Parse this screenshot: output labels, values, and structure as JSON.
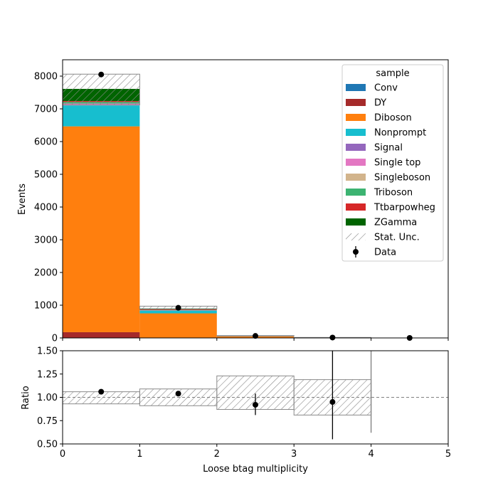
{
  "chart_data": [
    {
      "type": "bar",
      "stacked": true,
      "xlabel": "",
      "ylabel": "Events",
      "xlim": [
        0,
        5
      ],
      "ylim": [
        0,
        8500
      ],
      "xticks": [
        0,
        1,
        2,
        3,
        4,
        5
      ],
      "xtick_labels_shown": false,
      "yticks": [
        0,
        1000,
        2000,
        3000,
        4000,
        5000,
        6000,
        7000,
        8000
      ],
      "bin_edges": [
        0,
        1,
        2,
        3,
        4,
        5
      ],
      "legend_title": "sample",
      "legend_position": "top-right",
      "series": [
        {
          "name": "Conv",
          "color": "#1f77b4",
          "values": [
            0,
            0,
            0,
            0,
            0
          ]
        },
        {
          "name": "DY",
          "color": "#a52a2a",
          "values": [
            175,
            10,
            2,
            0,
            0
          ]
        },
        {
          "name": "Diboson",
          "color": "#ff7f0e",
          "values": [
            6290,
            740,
            42,
            8,
            0
          ]
        },
        {
          "name": "Nonprompt",
          "color": "#17becf",
          "values": [
            640,
            85,
            6,
            1,
            0
          ]
        },
        {
          "name": "Signal",
          "color": "#9467bd",
          "values": [
            0,
            0,
            0,
            0,
            0
          ]
        },
        {
          "name": "Single top",
          "color": "#e377c2",
          "values": [
            55,
            8,
            1,
            0,
            0
          ]
        },
        {
          "name": "Singleboson",
          "color": "#d2b48c",
          "values": [
            0,
            0,
            0,
            0,
            0
          ]
        },
        {
          "name": "Triboson",
          "color": "#3cb371",
          "values": [
            50,
            8,
            1,
            0,
            0
          ]
        },
        {
          "name": "Ttbarpowheg",
          "color": "#d62728",
          "values": [
            30,
            20,
            10,
            3,
            0
          ]
        },
        {
          "name": "ZGamma",
          "color": "#006400",
          "values": [
            370,
            30,
            4,
            1,
            0
          ]
        }
      ],
      "stat_unc": {
        "name": "Stat. Unc.",
        "up": [
          8060,
          970,
          72,
          15,
          0
        ],
        "down": [
          7120,
          890,
          60,
          11,
          0
        ]
      },
      "data_series": {
        "name": "Data",
        "x": [
          0.5,
          1.5,
          2.5,
          3.5,
          4.5
        ],
        "y": [
          8050,
          920,
          62,
          12,
          0
        ]
      }
    },
    {
      "type": "line",
      "xlabel": "Loose btag multiplicity",
      "ylabel": "Ratio",
      "xlim": [
        0,
        5
      ],
      "ylim": [
        0.5,
        1.5
      ],
      "xticks": [
        0,
        1,
        2,
        3,
        4,
        5
      ],
      "yticks": [
        0.5,
        0.75,
        1.0,
        1.25,
        1.5
      ],
      "ytick_labels": [
        "0.50",
        "0.75",
        "1.00",
        "1.25",
        "1.50"
      ],
      "reference_line": 1.0,
      "unc_band": {
        "edges": [
          0,
          1,
          2,
          3,
          4
        ],
        "up": [
          1.06,
          1.09,
          1.23,
          1.19
        ],
        "down": [
          0.93,
          0.91,
          0.87,
          0.81
        ]
      },
      "ratio_points": {
        "x": [
          0.5,
          1.5,
          2.5,
          3.5
        ],
        "y": [
          1.06,
          1.04,
          0.92,
          0.95
        ],
        "err_up": [
          0.01,
          0.01,
          0.12,
          0.6
        ],
        "err_down": [
          0.01,
          0.01,
          0.11,
          0.4
        ]
      }
    }
  ]
}
